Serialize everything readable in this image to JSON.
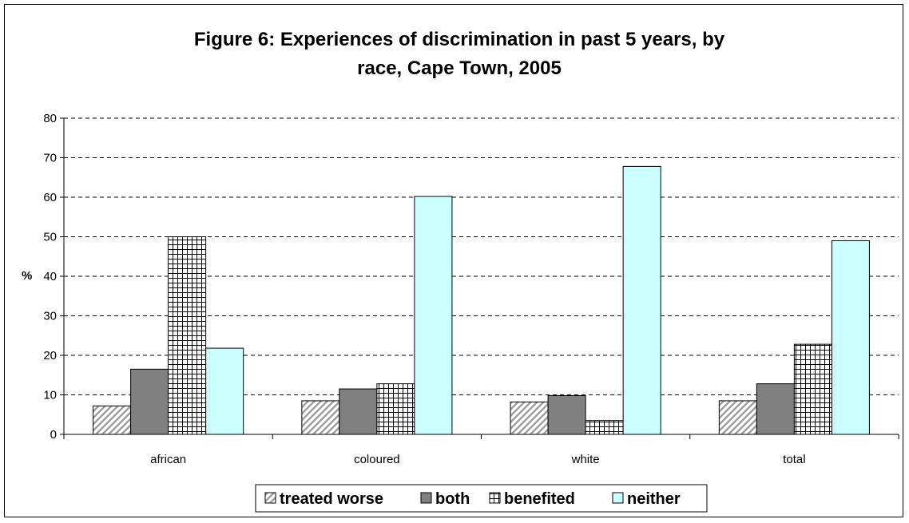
{
  "chart_data": {
    "type": "bar",
    "title_lines": [
      "Figure 6: Experiences of discrimination in past 5 years, by",
      "race, Cape Town, 2005"
    ],
    "ylabel": "%",
    "xlabel": "",
    "ylim": [
      0,
      80
    ],
    "yticks": [
      0,
      10,
      20,
      30,
      40,
      50,
      60,
      70,
      80
    ],
    "grid": true,
    "legend_position": "bottom",
    "categories": [
      "african",
      "coloured",
      "white",
      "total"
    ],
    "series": [
      {
        "name": "treated worse",
        "values": [
          7.2,
          8.5,
          8.2,
          8.5
        ],
        "color": "#c0c0c0",
        "pattern": "diagonal"
      },
      {
        "name": "both",
        "values": [
          16.5,
          11.5,
          9.8,
          12.8
        ],
        "color": "#808080",
        "pattern": "solid"
      },
      {
        "name": "benefited",
        "values": [
          50,
          12.8,
          3.5,
          22.8
        ],
        "color": "#ffffff",
        "pattern": "grid"
      },
      {
        "name": "neither",
        "values": [
          21.8,
          60.2,
          67.8,
          49
        ],
        "color": "#ccffff",
        "pattern": "solid"
      }
    ]
  }
}
